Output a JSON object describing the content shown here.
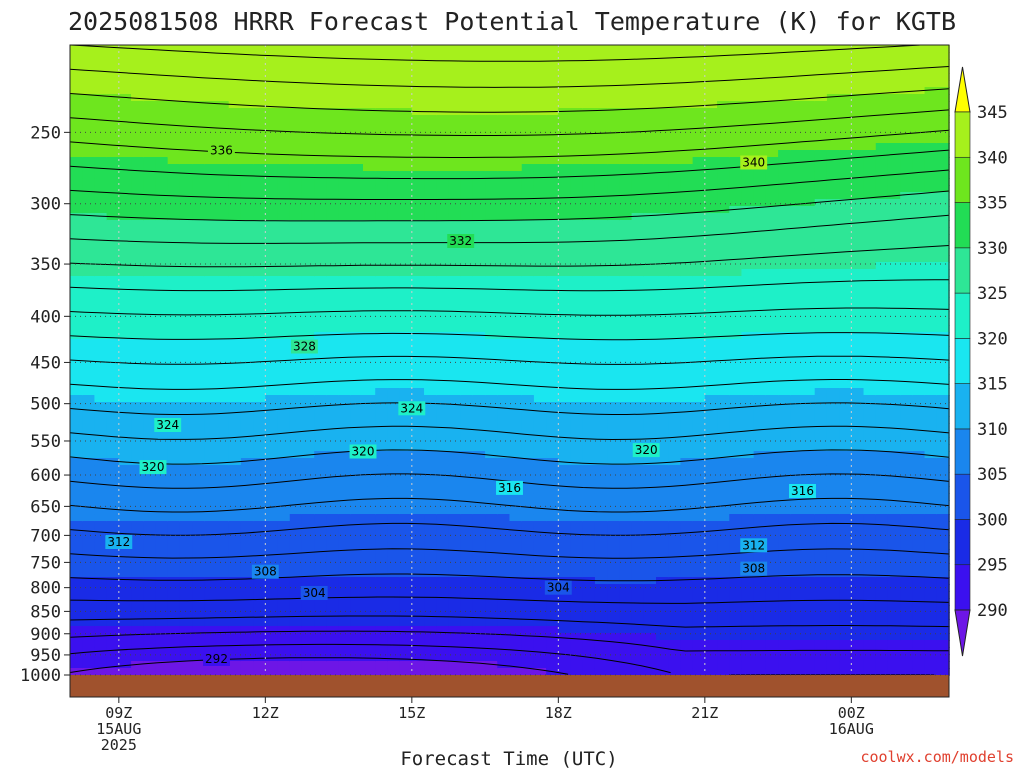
{
  "title": "2025081508 HRRR Forecast Potential Temperature (K) for KGTB",
  "xlabel": "Forecast Time (UTC)",
  "credit": "coolwx.com/models",
  "chart_data": {
    "type": "heatmap",
    "title": "2025081508 HRRR Forecast Potential Temperature (K) for KGTB",
    "xlabel": "Forecast Time (UTC)",
    "ylabel": "",
    "y_scale": "log-pressure (hPa), inverted",
    "ylim": [
      1000,
      200
    ],
    "xlim_hours": [
      0,
      18
    ],
    "x_ticks": [
      {
        "hour": 1,
        "lines": [
          "09Z",
          "15AUG",
          "2025"
        ]
      },
      {
        "hour": 4,
        "lines": [
          "12Z"
        ]
      },
      {
        "hour": 7,
        "lines": [
          "15Z"
        ]
      },
      {
        "hour": 10,
        "lines": [
          "18Z"
        ]
      },
      {
        "hour": 13,
        "lines": [
          "21Z"
        ]
      },
      {
        "hour": 16,
        "lines": [
          "00Z",
          "16AUG"
        ]
      }
    ],
    "y_ticks": [
      250,
      300,
      350,
      400,
      450,
      500,
      550,
      600,
      650,
      700,
      750,
      800,
      850,
      900,
      950,
      1000
    ],
    "grid": true,
    "colorbar": {
      "levels": [
        290,
        295,
        300,
        305,
        310,
        315,
        320,
        325,
        330,
        335,
        340,
        345
      ],
      "colors": [
        "#6d16e6",
        "#3b10ef",
        "#1a2be6",
        "#1a55ea",
        "#1a86ee",
        "#19b2f0",
        "#1ae6f0",
        "#1ef0c8",
        "#2ee696",
        "#22dd55",
        "#6ee61e",
        "#a6f01c",
        "#e8f51a",
        "#ffff00"
      ],
      "extend": "both"
    },
    "contour_interval": 2,
    "contour_labels": [
      {
        "value": 336,
        "hour": 3.1,
        "pressure": 262
      },
      {
        "value": 340,
        "hour": 14.0,
        "pressure": 270
      },
      {
        "value": 332,
        "hour": 8.0,
        "pressure": 330
      },
      {
        "value": 328,
        "hour": 4.8,
        "pressure": 432
      },
      {
        "value": 324,
        "hour": 2.0,
        "pressure": 528
      },
      {
        "value": 324,
        "hour": 7.0,
        "pressure": 506
      },
      {
        "value": 320,
        "hour": 1.7,
        "pressure": 588
      },
      {
        "value": 320,
        "hour": 6.0,
        "pressure": 565
      },
      {
        "value": 320,
        "hour": 11.8,
        "pressure": 563
      },
      {
        "value": 316,
        "hour": 9.0,
        "pressure": 620
      },
      {
        "value": 316,
        "hour": 15.0,
        "pressure": 625
      },
      {
        "value": 312,
        "hour": 1.0,
        "pressure": 712
      },
      {
        "value": 312,
        "hour": 14.0,
        "pressure": 718
      },
      {
        "value": 308,
        "hour": 4.0,
        "pressure": 768
      },
      {
        "value": 308,
        "hour": 14.0,
        "pressure": 762
      },
      {
        "value": 304,
        "hour": 5.0,
        "pressure": 811
      },
      {
        "value": 304,
        "hour": 10.0,
        "pressure": 800
      },
      {
        "value": 292,
        "hour": 3.0,
        "pressure": 960
      }
    ],
    "surface_terrain_color": "#a0522d"
  }
}
